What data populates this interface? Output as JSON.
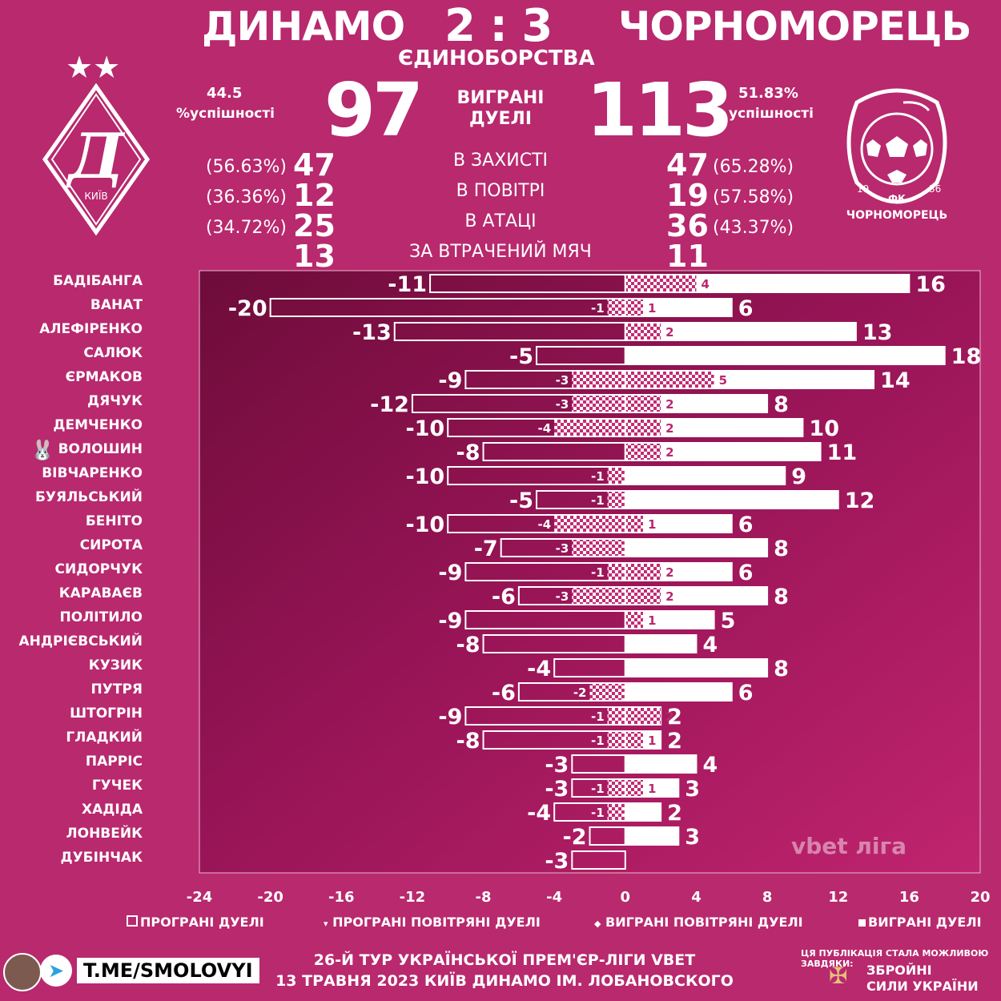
{
  "header": {
    "home_team": "ДИНАМО",
    "away_team": "ЧОРНОМОРЕЦЬ",
    "score": "2 : 3",
    "subtitle": "ЄДИНОБОРСТВА"
  },
  "summary": {
    "home_pct": "44.5",
    "home_pct_label": "%успішності",
    "home_won": "97",
    "center_label_1": "ВИГРАНІ",
    "center_label_2": "ДУЕЛІ",
    "away_won": "113",
    "away_pct": "51.83%",
    "away_pct_label": "успішності"
  },
  "categories": [
    {
      "label": "В ЗАХИСТІ",
      "home": "47",
      "home_pct": "(56.63%)",
      "away": "47",
      "away_pct": "(65.28%)"
    },
    {
      "label": "В ПОВІТРІ",
      "home": "12",
      "home_pct": "(36.36%)",
      "away": "19",
      "away_pct": "(57.58%)"
    },
    {
      "label": "В АТАЦІ",
      "home": "25",
      "home_pct": "(34.72%)",
      "away": "36",
      "away_pct": "(43.37%)"
    },
    {
      "label": "ЗА ВТРАЧЕНИЙ МЯЧ",
      "home": "13",
      "home_pct": "",
      "away": "11",
      "away_pct": ""
    }
  ],
  "logos": {
    "home_stars": "★★",
    "home_city": "КИЇВ",
    "away_fk": "ФК",
    "away_year_left": "19",
    "away_year_right": "36",
    "away_name": "ЧОРНОМОРЕЦЬ"
  },
  "colors": {
    "background": "#b8296e",
    "panel_dark": "#7a0f42",
    "bar_outline": "#ffffff"
  },
  "chart_data": {
    "type": "bar",
    "orientation": "horizontal-diverging",
    "categories": [
      "БАДІБАНГА",
      "ВАНАТ",
      "АЛЕФІРЕНКО",
      "САЛЮК",
      "ЄРМАКОВ",
      "ДЯЧУК",
      "ДЕМЧЕНКО",
      "ВОЛОШИН",
      "ВІВЧАРЕНКО",
      "БУЯЛЬСЬКИЙ",
      "БЕНІТО",
      "СИРОТА",
      "СИДОРЧУК",
      "КАРАВАЄВ",
      "ПОЛІТИЛО",
      "АНДРІЄВСЬКИЙ",
      "КУЗИК",
      "ПУТРЯ",
      "ШТОГРІН",
      "ГЛАДКИЙ",
      "ПАРРІС",
      "ГУЧЕК",
      "ХАДІДА",
      "ЛОНВЕЙК",
      "ДУБІНЧАК"
    ],
    "series": [
      {
        "name": "ПРОГРАНІ ДУЕЛІ",
        "values": [
          -11,
          -20,
          -13,
          -5,
          -9,
          -12,
          -10,
          -8,
          -10,
          -5,
          -10,
          -7,
          -9,
          -6,
          -9,
          -8,
          -4,
          -6,
          -9,
          -8,
          -3,
          -3,
          -4,
          -2,
          -3
        ]
      },
      {
        "name": "ПРОГРАНІ ПОВІТРЯНІ ДУЕЛІ",
        "values": [
          0,
          -1,
          0,
          0,
          -3,
          -3,
          -4,
          0,
          -1,
          -1,
          -4,
          -3,
          -1,
          -3,
          0,
          0,
          0,
          -2,
          -1,
          -1,
          0,
          -1,
          -1,
          0,
          0
        ]
      },
      {
        "name": "ВИГРАНІ ПОВІТРЯНІ ДУЕЛІ",
        "values": [
          4,
          1,
          2,
          0,
          5,
          2,
          2,
          2,
          0,
          0,
          1,
          0,
          2,
          2,
          1,
          0,
          0,
          0,
          2,
          1,
          0,
          1,
          0,
          0,
          0
        ]
      },
      {
        "name": "ВИГРАНІ ДУЕЛІ",
        "values": [
          16,
          6,
          13,
          18,
          14,
          8,
          10,
          11,
          9,
          12,
          6,
          8,
          6,
          8,
          5,
          4,
          8,
          6,
          2,
          2,
          4,
          3,
          2,
          3,
          0
        ]
      }
    ],
    "xlim": [
      -24,
      20
    ],
    "xticks": [
      -24,
      -20,
      -16,
      -12,
      -8,
      -4,
      0,
      4,
      8,
      12,
      16,
      20
    ],
    "marked_player": "ВОЛОШИН",
    "marked_icon": "rabbit-icon",
    "watermark": "vbet ліга"
  },
  "footer": {
    "channel": "T.ME/SMOLOVYI",
    "round": "26-Й ТУР УКРАЇНСЬКОЇ ПРЕМ'ЄР-ЛІГИ VBET",
    "date_place": "13 ТРАВНЯ 2023 КИЇВ ДИНАМО ІМ. ЛОБАНОВСКОГО",
    "sponsor_note": "ЦЯ ПУБЛІКАЦІЯ СТАЛА МОЖЛИВОЮ ЗАВДЯКИ:",
    "sponsor_1": "ЗБРОЙНІ",
    "sponsor_2": "СИЛИ УКРАЇНИ"
  }
}
